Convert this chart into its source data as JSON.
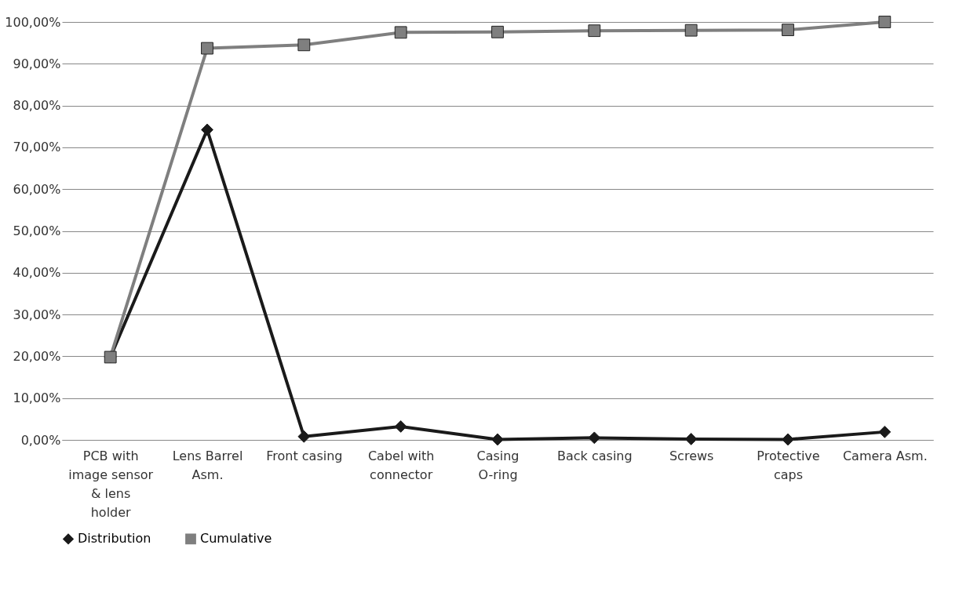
{
  "chart_data": {
    "type": "line",
    "categories": [
      "PCB with image sensor & lens holder",
      "Lens Barrel Asm.",
      "Front casing",
      "Cabel with connector",
      "Casing O-ring",
      "Back casing",
      "Screws",
      "Protective caps",
      "Camera Asm."
    ],
    "series": [
      {
        "name": "Distribution",
        "color": "#1a1a1a",
        "marker": "diamond",
        "values": [
          19.8,
          74.2,
          0.8,
          3.2,
          0.1,
          0.5,
          0.2,
          0.1,
          1.9
        ]
      },
      {
        "name": "Cumulative",
        "color": "#7f7f7f",
        "marker": "square",
        "values": [
          19.8,
          93.7,
          94.5,
          97.5,
          97.6,
          97.9,
          98.0,
          98.1,
          100.0
        ]
      }
    ],
    "ylim": [
      0,
      100
    ],
    "yticks": [
      {
        "value": 0,
        "label": "0,00%"
      },
      {
        "value": 10,
        "label": "10,00%"
      },
      {
        "value": 20,
        "label": "20,00%"
      },
      {
        "value": 30,
        "label": "30,00%"
      },
      {
        "value": 40,
        "label": "40,00%"
      },
      {
        "value": 50,
        "label": "50,00%"
      },
      {
        "value": 60,
        "label": "60,00%"
      },
      {
        "value": 70,
        "label": "70,00%"
      },
      {
        "value": 80,
        "label": "80,00%"
      },
      {
        "value": 90,
        "label": "90,00%"
      },
      {
        "value": 100,
        "label": "100,00%"
      }
    ],
    "grid": "y",
    "legend": "bottom",
    "line_style": "solid"
  }
}
